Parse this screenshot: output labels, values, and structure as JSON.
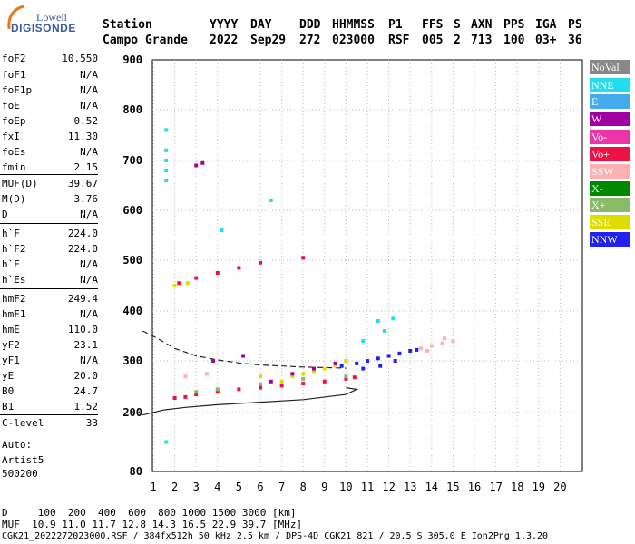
{
  "logo": {
    "brand": "Lowell",
    "name": "DIGISONDE"
  },
  "header": {
    "labels": [
      "Station",
      "YYYY",
      "DAY",
      "DDD",
      "HHMMSS",
      "P1",
      "FFS",
      "S",
      "AXN",
      "PPS",
      "IGA",
      "PS"
    ],
    "values": [
      "Campo Grande",
      "2022",
      "Sep29",
      "272",
      "023000",
      "RSF",
      "005",
      "2",
      "713",
      "100",
      "03+",
      "36"
    ]
  },
  "params": [
    {
      "k": "foF2",
      "v": "10.550"
    },
    {
      "k": "foF1",
      "v": "N/A"
    },
    {
      "k": "foF1p",
      "v": "N/A"
    },
    {
      "k": "foE",
      "v": "N/A"
    },
    {
      "k": "foEp",
      "v": "0.52"
    },
    {
      "k": "fxI",
      "v": "11.30"
    },
    {
      "k": "foEs",
      "v": "N/A"
    },
    {
      "k": "fmin",
      "v": "2.15"
    },
    {
      "k": "MUF(D)",
      "v": "39.67"
    },
    {
      "k": "M(D)",
      "v": "3.76"
    },
    {
      "k": "D",
      "v": "N/A"
    },
    {
      "k": "h`F",
      "v": "224.0"
    },
    {
      "k": "h`F2",
      "v": "224.0"
    },
    {
      "k": "h`E",
      "v": "N/A"
    },
    {
      "k": "h`Es",
      "v": "N/A"
    },
    {
      "k": "hmF2",
      "v": "249.4"
    },
    {
      "k": "hmF1",
      "v": "N/A"
    },
    {
      "k": "hmE",
      "v": "110.0"
    },
    {
      "k": "yF2",
      "v": "23.1"
    },
    {
      "k": "yF1",
      "v": "N/A"
    },
    {
      "k": "yE",
      "v": "20.0"
    },
    {
      "k": "B0",
      "v": "24.7"
    },
    {
      "k": "B1",
      "v": "1.52"
    },
    {
      "k": "C-level",
      "v": "33"
    }
  ],
  "auto": [
    "Auto:",
    "Artist5",
    "500200"
  ],
  "legend": [
    {
      "label": "NoVal",
      "color": "#888888"
    },
    {
      "label": "NNE",
      "color": "#22ddee"
    },
    {
      "label": "E",
      "color": "#44aaee"
    },
    {
      "label": "W",
      "color": "#a000a0"
    },
    {
      "label": "Vo-",
      "color": "#ee33aa"
    },
    {
      "label": "Vo+",
      "color": "#ee1144"
    },
    {
      "label": "SSW",
      "color": "#ffb0b0"
    },
    {
      "label": "X-",
      "color": "#008800"
    },
    {
      "label": "X+",
      "color": "#88bb66"
    },
    {
      "label": "SSE",
      "color": "#dddd00"
    },
    {
      "label": "NNW",
      "color": "#2222ee"
    }
  ],
  "footer": {
    "d_line": "D     100  200  400  600  800 1000 1500 3000 [km]",
    "muf_line": "MUF  10.9 11.0 11.7 12.8 14.3 16.5 22.9 39.7 [MHz]",
    "file_line": "CGK21_2022272023000.RSF / 384fx512h 50 kHz 2.5 km / DPS-4D CGK21 821 / 20.5 S 305.0 E Ion2Png 1.3.20"
  },
  "chart_data": {
    "type": "scatter",
    "x_ticks": [
      1,
      2,
      3,
      4,
      5,
      6,
      7,
      8,
      9,
      10,
      11,
      12,
      13,
      14,
      15,
      16,
      17,
      18,
      19,
      20
    ],
    "y_ticks": [
      80,
      200,
      300,
      400,
      500,
      600,
      700,
      800,
      900
    ],
    "xlim": [
      0.5,
      20.5
    ],
    "ylim": [
      80,
      900
    ],
    "xlabel": "",
    "ylabel": "",
    "series": [
      {
        "name": "NNE",
        "points": [
          [
            1.6,
            760
          ],
          [
            1.6,
            720
          ],
          [
            1.6,
            700
          ],
          [
            1.6,
            680
          ],
          [
            1.6,
            660
          ],
          [
            1.6,
            140
          ],
          [
            4.2,
            560
          ],
          [
            6.5,
            620
          ],
          [
            11.5,
            380
          ],
          [
            12.2,
            385
          ],
          [
            11.8,
            360
          ],
          [
            10.8,
            340
          ]
        ]
      },
      {
        "name": "Vo+",
        "points": [
          [
            2.0,
            228
          ],
          [
            2.5,
            230
          ],
          [
            3.0,
            235
          ],
          [
            4.0,
            240
          ],
          [
            5.0,
            245
          ],
          [
            6.0,
            248
          ],
          [
            7.0,
            252
          ],
          [
            8.0,
            256
          ],
          [
            9.0,
            260
          ],
          [
            10.0,
            265
          ],
          [
            10.4,
            268
          ],
          [
            2.2,
            455
          ],
          [
            3.0,
            465
          ],
          [
            4.0,
            475
          ],
          [
            5.0,
            485
          ],
          [
            6.0,
            495
          ],
          [
            8.0,
            505
          ]
        ]
      },
      {
        "name": "NNW",
        "points": [
          [
            10.0,
            300
          ],
          [
            10.5,
            295
          ],
          [
            11.0,
            300
          ],
          [
            11.5,
            305
          ],
          [
            12.0,
            310
          ],
          [
            12.5,
            315
          ],
          [
            13.0,
            320
          ],
          [
            13.3,
            322
          ],
          [
            10.8,
            285
          ],
          [
            11.6,
            290
          ],
          [
            12.3,
            300
          ],
          [
            9.8,
            290
          ]
        ]
      },
      {
        "name": "SSE",
        "points": [
          [
            7.0,
            260
          ],
          [
            7.5,
            270
          ],
          [
            8.0,
            275
          ],
          [
            8.5,
            280
          ],
          [
            9.0,
            285
          ],
          [
            9.5,
            290
          ],
          [
            10.0,
            300
          ],
          [
            2.0,
            450
          ],
          [
            2.6,
            455
          ],
          [
            6.0,
            270
          ]
        ]
      },
      {
        "name": "SSW",
        "points": [
          [
            13.5,
            325
          ],
          [
            14.0,
            330
          ],
          [
            14.5,
            335
          ],
          [
            15.0,
            340
          ],
          [
            13.8,
            320
          ],
          [
            14.6,
            345
          ],
          [
            2.5,
            270
          ],
          [
            3.5,
            275
          ]
        ]
      },
      {
        "name": "W",
        "points": [
          [
            3.0,
            690
          ],
          [
            3.3,
            695
          ],
          [
            6.5,
            260
          ],
          [
            7.5,
            275
          ],
          [
            8.5,
            285
          ],
          [
            9.5,
            295
          ],
          [
            3.8,
            300
          ],
          [
            5.2,
            310
          ]
        ]
      },
      {
        "name": "X+",
        "points": [
          [
            3.0,
            240
          ],
          [
            4.0,
            245
          ],
          [
            6.0,
            255
          ],
          [
            8.0,
            265
          ],
          [
            10.0,
            270
          ]
        ]
      }
    ]
  }
}
